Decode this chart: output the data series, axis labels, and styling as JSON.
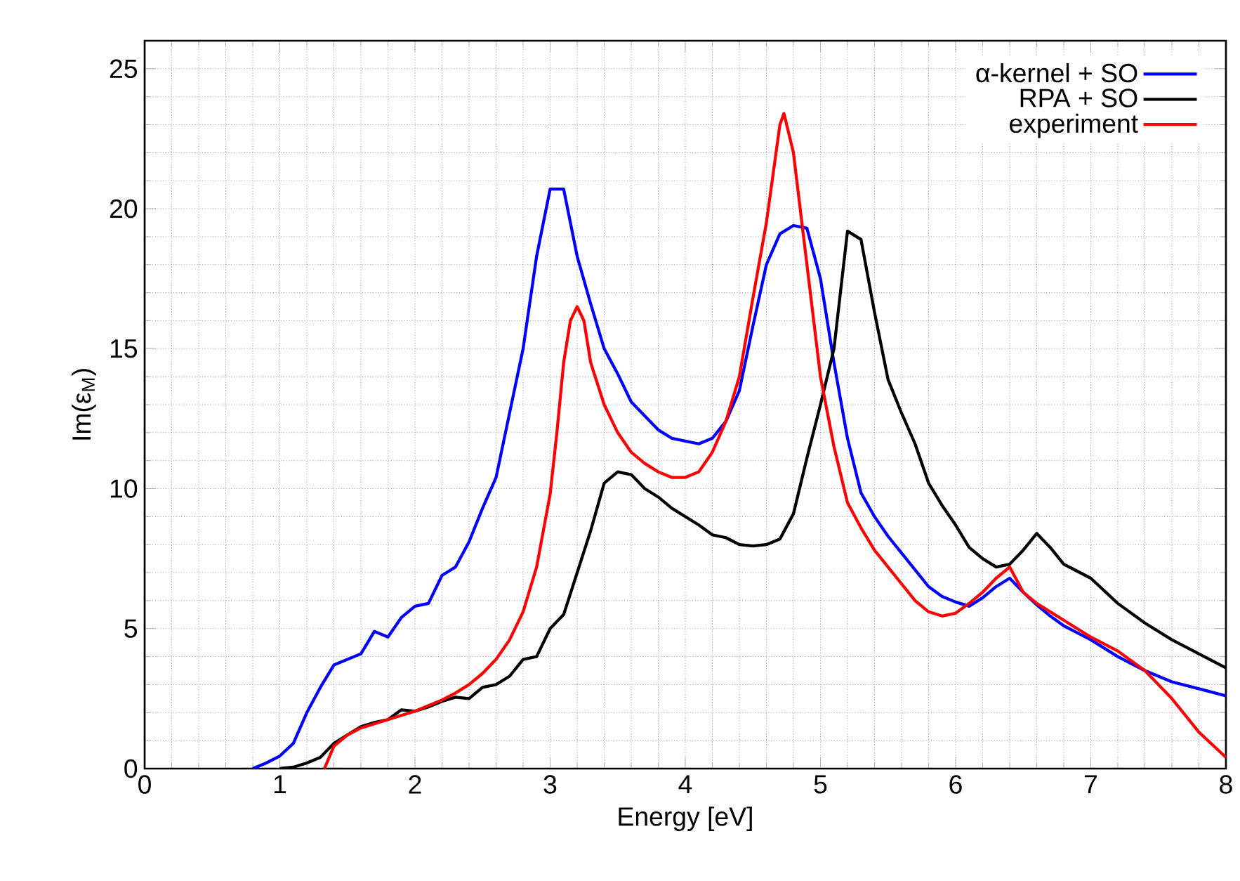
{
  "chart_data": {
    "type": "line",
    "xlabel": "Energy [eV]",
    "ylabel": "Im(ε$_{M}$)",
    "xlim": [
      0,
      8
    ],
    "ylim": [
      0,
      26
    ],
    "xticks": [
      0,
      1,
      2,
      3,
      4,
      5,
      6,
      7,
      8
    ],
    "yticks": [
      0,
      5,
      10,
      15,
      20,
      25
    ],
    "grid": true,
    "legend": "top right",
    "line_style": "solid",
    "marker": "none",
    "series": [
      {
        "name": "α-kernel + SO",
        "color": "#0000ff",
        "x": [
          0.8,
          0.9,
          1.0,
          1.1,
          1.2,
          1.3,
          1.4,
          1.5,
          1.6,
          1.7,
          1.8,
          1.9,
          2.0,
          2.1,
          2.2,
          2.3,
          2.4,
          2.5,
          2.6,
          2.7,
          2.8,
          2.9,
          3.0,
          3.1,
          3.2,
          3.3,
          3.4,
          3.5,
          3.6,
          3.7,
          3.8,
          3.9,
          4.0,
          4.1,
          4.2,
          4.3,
          4.4,
          4.5,
          4.6,
          4.7,
          4.8,
          4.9,
          5.0,
          5.1,
          5.2,
          5.3,
          5.4,
          5.5,
          5.6,
          5.7,
          5.8,
          5.9,
          6.0,
          6.1,
          6.2,
          6.3,
          6.4,
          6.5,
          6.6,
          6.7,
          6.8,
          7.0,
          7.2,
          7.4,
          7.6,
          7.8,
          8.0
        ],
        "values": [
          0,
          0.2,
          0.45,
          0.9,
          2.0,
          2.9,
          3.7,
          3.9,
          4.1,
          4.9,
          4.7,
          5.4,
          5.8,
          5.9,
          6.9,
          7.2,
          8.1,
          9.3,
          10.4,
          12.7,
          15.0,
          18.3,
          20.7,
          20.7,
          18.3,
          16.6,
          15.0,
          14.1,
          13.1,
          12.6,
          12.1,
          11.8,
          11.7,
          11.6,
          11.8,
          12.4,
          13.5,
          15.8,
          18.0,
          19.1,
          19.4,
          19.3,
          17.5,
          14.5,
          11.8,
          9.85,
          9.0,
          8.3,
          7.7,
          7.1,
          6.5,
          6.15,
          5.95,
          5.8,
          6.1,
          6.5,
          6.8,
          6.3,
          5.85,
          5.45,
          5.1,
          4.6,
          4.0,
          3.5,
          3.1,
          2.85,
          2.6
        ]
      },
      {
        "name": "RPA + SO",
        "color": "#000000",
        "x": [
          1.0,
          1.1,
          1.2,
          1.3,
          1.4,
          1.5,
          1.6,
          1.7,
          1.8,
          1.9,
          2.0,
          2.1,
          2.2,
          2.3,
          2.4,
          2.5,
          2.6,
          2.7,
          2.8,
          2.9,
          3.0,
          3.1,
          3.2,
          3.3,
          3.4,
          3.5,
          3.6,
          3.7,
          3.8,
          3.9,
          4.0,
          4.1,
          4.2,
          4.3,
          4.4,
          4.5,
          4.6,
          4.7,
          4.8,
          4.9,
          5.0,
          5.1,
          5.2,
          5.3,
          5.4,
          5.5,
          5.6,
          5.7,
          5.8,
          5.9,
          6.0,
          6.1,
          6.2,
          6.3,
          6.4,
          6.5,
          6.6,
          6.7,
          6.8,
          7.0,
          7.2,
          7.4,
          7.6,
          7.8,
          8.0
        ],
        "values": [
          0,
          0.05,
          0.2,
          0.4,
          0.9,
          1.2,
          1.5,
          1.65,
          1.75,
          2.1,
          2.05,
          2.2,
          2.4,
          2.55,
          2.5,
          2.9,
          3.0,
          3.3,
          3.9,
          4.0,
          5.0,
          5.5,
          7.0,
          8.5,
          10.2,
          10.6,
          10.5,
          10.0,
          9.7,
          9.3,
          9.0,
          8.7,
          8.35,
          8.25,
          8.0,
          7.95,
          8.0,
          8.2,
          9.1,
          11.1,
          13.0,
          15.0,
          19.2,
          18.9,
          16.3,
          13.9,
          12.7,
          11.6,
          10.2,
          9.4,
          8.7,
          7.9,
          7.5,
          7.2,
          7.3,
          7.8,
          8.4,
          7.9,
          7.3,
          6.8,
          5.9,
          5.2,
          4.6,
          4.1,
          3.6
        ]
      },
      {
        "name": "experiment",
        "color": "#ff0000",
        "x": [
          1.33,
          1.4,
          1.5,
          1.6,
          1.7,
          1.8,
          1.9,
          2.0,
          2.1,
          2.2,
          2.3,
          2.4,
          2.5,
          2.6,
          2.7,
          2.8,
          2.9,
          3.0,
          3.05,
          3.1,
          3.15,
          3.2,
          3.25,
          3.3,
          3.4,
          3.5,
          3.6,
          3.7,
          3.8,
          3.9,
          4.0,
          4.1,
          4.2,
          4.3,
          4.4,
          4.5,
          4.6,
          4.7,
          4.73,
          4.8,
          4.9,
          5.0,
          5.1,
          5.2,
          5.3,
          5.4,
          5.5,
          5.6,
          5.7,
          5.8,
          5.9,
          6.0,
          6.1,
          6.2,
          6.3,
          6.4,
          6.5,
          6.6,
          6.8,
          7.0,
          7.2,
          7.4,
          7.6,
          7.8,
          8.0
        ],
        "values": [
          0,
          0.8,
          1.2,
          1.45,
          1.6,
          1.75,
          1.9,
          2.05,
          2.25,
          2.45,
          2.7,
          3.0,
          3.4,
          3.9,
          4.6,
          5.6,
          7.2,
          9.8,
          12.0,
          14.5,
          16.0,
          16.5,
          16.0,
          14.5,
          13.0,
          12.0,
          11.3,
          10.9,
          10.6,
          10.4,
          10.4,
          10.6,
          11.3,
          12.4,
          14.0,
          16.8,
          19.5,
          23.0,
          23.4,
          22.0,
          18.0,
          14.0,
          11.5,
          9.5,
          8.6,
          7.8,
          7.2,
          6.6,
          6.0,
          5.6,
          5.45,
          5.55,
          5.9,
          6.3,
          6.8,
          7.2,
          6.3,
          5.9,
          5.3,
          4.7,
          4.2,
          3.5,
          2.5,
          1.3,
          0.4
        ]
      }
    ]
  }
}
